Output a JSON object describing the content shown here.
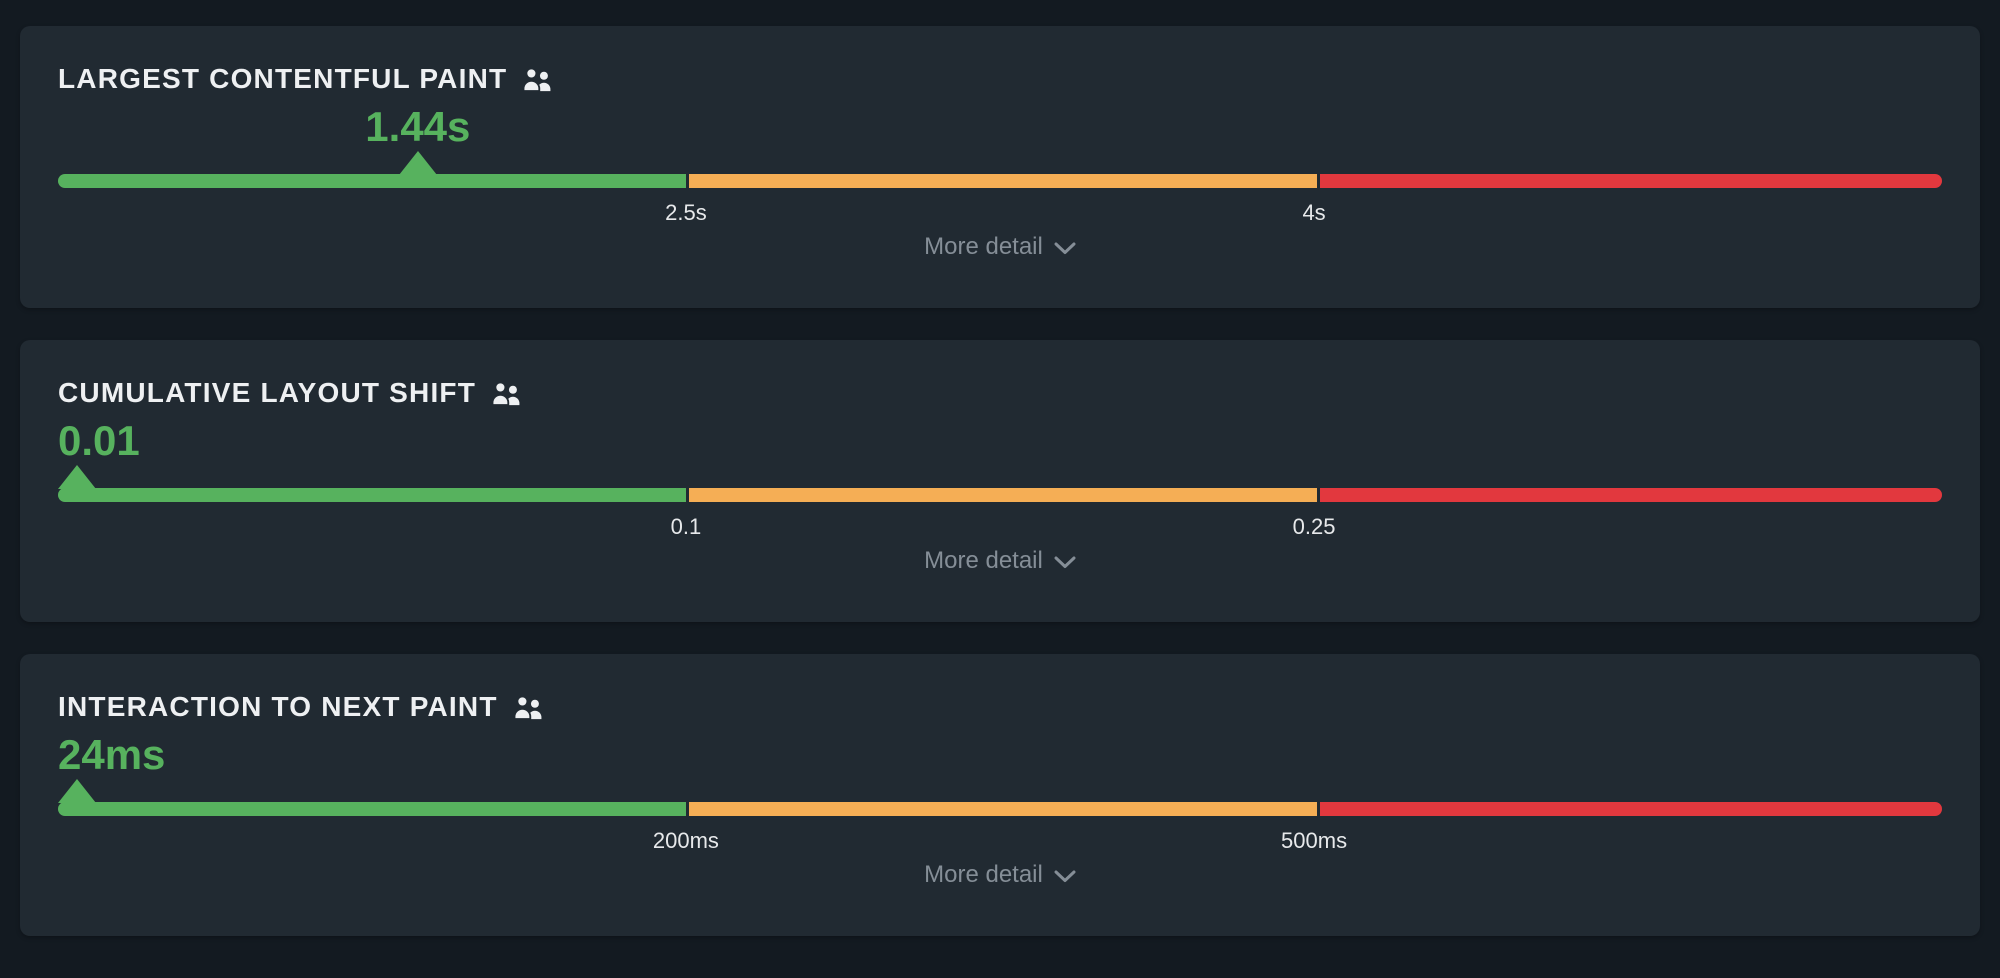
{
  "page": {
    "background_color": "#131a21",
    "card_color": "#212a32"
  },
  "colors": {
    "good": "#57b25e",
    "needs_improvement": "#f5ae55",
    "poor": "#e2383e",
    "title_text": "#eef0f2",
    "threshold_text": "#e7e9eb",
    "more_detail_text": "#858e97"
  },
  "more_detail_label": "More detail",
  "metrics": [
    {
      "id": "lcp",
      "title": "LARGEST CONTENTFUL PAINT",
      "value": "1.44s",
      "value_centered_on_marker": true,
      "marker_percent": 19.1,
      "thresholds": [
        {
          "label": "2.5s",
          "percent": 33.33
        },
        {
          "label": "4s",
          "percent": 66.67
        }
      ]
    },
    {
      "id": "cls",
      "title": "CUMULATIVE LAYOUT SHIFT",
      "value": "0.01",
      "value_centered_on_marker": false,
      "marker_percent": 1.0,
      "thresholds": [
        {
          "label": "0.1",
          "percent": 33.33
        },
        {
          "label": "0.25",
          "percent": 66.67
        }
      ]
    },
    {
      "id": "inp",
      "title": "INTERACTION TO NEXT PAINT",
      "value": "24ms",
      "value_centered_on_marker": false,
      "marker_percent": 1.0,
      "thresholds": [
        {
          "label": "200ms",
          "percent": 33.33
        },
        {
          "label": "500ms",
          "percent": 66.67
        }
      ]
    }
  ],
  "chart_data": [
    {
      "type": "gauge",
      "metric": "Largest Contentful Paint",
      "value": 1.44,
      "unit": "s",
      "display_value": "1.44s",
      "rating": "good",
      "zones": [
        {
          "rating": "good",
          "upper_bound_label": "2.5s",
          "color": "#57b25e"
        },
        {
          "rating": "needs-improvement",
          "upper_bound_label": "4s",
          "color": "#f5ae55"
        },
        {
          "rating": "poor",
          "color": "#e2383e"
        }
      ]
    },
    {
      "type": "gauge",
      "metric": "Cumulative Layout Shift",
      "value": 0.01,
      "unit": "",
      "display_value": "0.01",
      "rating": "good",
      "zones": [
        {
          "rating": "good",
          "upper_bound_label": "0.1",
          "color": "#57b25e"
        },
        {
          "rating": "needs-improvement",
          "upper_bound_label": "0.25",
          "color": "#f5ae55"
        },
        {
          "rating": "poor",
          "color": "#e2383e"
        }
      ]
    },
    {
      "type": "gauge",
      "metric": "Interaction to Next Paint",
      "value": 24,
      "unit": "ms",
      "display_value": "24ms",
      "rating": "good",
      "zones": [
        {
          "rating": "good",
          "upper_bound_label": "200ms",
          "color": "#57b25e"
        },
        {
          "rating": "needs-improvement",
          "upper_bound_label": "500ms",
          "color": "#f5ae55"
        },
        {
          "rating": "poor",
          "color": "#e2383e"
        }
      ]
    }
  ]
}
